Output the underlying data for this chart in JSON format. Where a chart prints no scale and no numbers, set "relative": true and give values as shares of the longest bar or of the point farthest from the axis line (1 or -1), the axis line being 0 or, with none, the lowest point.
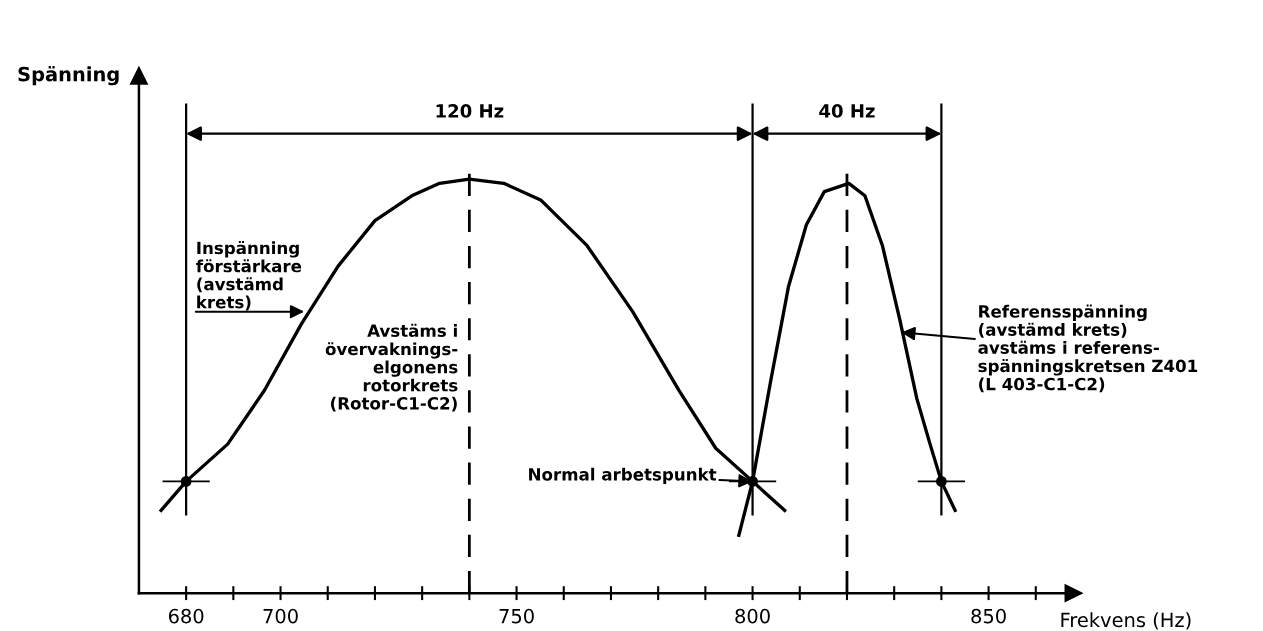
{
  "chart_data": {
    "type": "line",
    "relative": true,
    "ylabel": "Spänning",
    "xlabel": "Frekvens (Hz)",
    "tick_labels": "x",
    "grid": false,
    "marker": "none",
    "line_style": "solid",
    "xlim": [
      670,
      868
    ],
    "xticks": [
      680,
      {
        "value": 690,
        "label": null
      },
      700,
      {
        "value": 710,
        "label": null
      },
      {
        "value": 720,
        "label": null
      },
      {
        "value": 730,
        "label": null
      },
      {
        "value": 740,
        "label": null
      },
      750,
      {
        "value": 760,
        "label": null
      },
      {
        "value": 770,
        "label": null
      },
      {
        "value": 780,
        "label": null
      },
      {
        "value": 790,
        "label": null
      },
      800,
      {
        "value": 810,
        "label": null
      },
      {
        "value": 820,
        "label": null
      },
      {
        "value": 830,
        "label": null
      },
      {
        "value": 840,
        "label": null
      },
      850,
      {
        "value": 860,
        "label": null
      }
    ],
    "series": [
      {
        "color": "#000000",
        "x": [
          674.7,
          680,
          688.8,
          696.6,
          704.4,
          712.2,
          720,
          727.8,
          733.7,
          740,
          747.3,
          755.1,
          764.9,
          774.6,
          784.4,
          792.2,
          800,
          806.8
        ],
        "values": [
          0.2,
          0.27,
          0.36,
          0.49,
          0.65,
          0.79,
          0.9,
          0.96,
          0.99,
          1.0,
          0.99,
          0.95,
          0.84,
          0.68,
          0.49,
          0.35,
          0.27,
          0.2
        ]
      },
      {
        "color": "#000000",
        "x": [
          797.1,
          800,
          803.8,
          807.6,
          811.4,
          815.2,
          820.4,
          823.8,
          827.5,
          831.2,
          834.8,
          837.6,
          840,
          842.9
        ],
        "values": [
          0.14,
          0.27,
          0.51,
          0.74,
          0.89,
          0.97,
          0.99,
          0.96,
          0.84,
          0.66,
          0.47,
          0.36,
          0.27,
          0.2
        ]
      },
      {
        "type": "scatter",
        "color": "#000000",
        "marker": "circle",
        "x": [
          680,
          800,
          840
        ],
        "values": [
          0.27,
          0.27,
          0.27
        ],
        "xerrors": [
          5,
          5,
          5
        ]
      }
    ],
    "ref_lines": [
      {
        "axis": "x",
        "value": 680,
        "color": "#000000",
        "line_style": "solid"
      },
      {
        "axis": "x",
        "value": 800,
        "color": "#000000",
        "line_style": "solid"
      },
      {
        "axis": "x",
        "value": 840,
        "color": "#000000",
        "line_style": "solid"
      },
      {
        "axis": "x",
        "value": 740,
        "color": "#000000",
        "line_style": "dashed"
      },
      {
        "axis": "x",
        "value": 820,
        "color": "#000000",
        "line_style": "dashed"
      }
    ],
    "annotations": [
      "120 Hz",
      "40 Hz",
      {
        "text": "Inspänning\nförstärkare\n(avstämd\nkrets)",
        "x": 705,
        "y": 0.68
      },
      {
        "text": "Referensspänning\n(avstämd krets)\navstäms i referens-\nspänningskretsen Z401\n(L 403-C1-C2)",
        "x": 831.5,
        "y": 0.63
      },
      "Avstäms i\növervaknings-\nelgonens\nrotorkrets\n(Rotor-C1-C2)",
      {
        "text": "Normal arbetspunkt",
        "x": 800,
        "y": 0.27
      }
    ]
  }
}
